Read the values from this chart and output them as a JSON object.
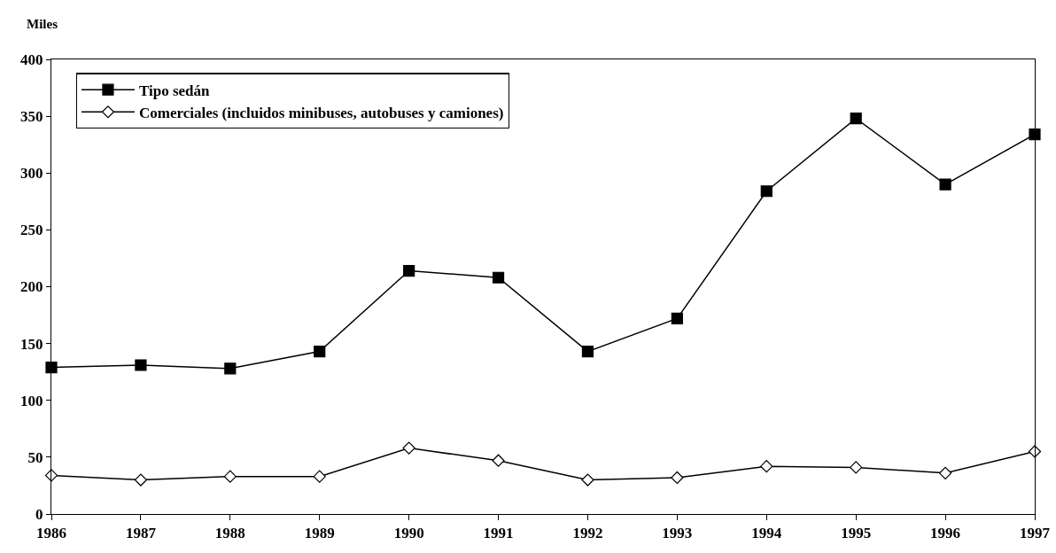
{
  "chart_data": {
    "type": "line",
    "ylabel": "Miles",
    "x": [
      1986,
      1987,
      1988,
      1989,
      1990,
      1991,
      1992,
      1993,
      1994,
      1995,
      1996,
      1997
    ],
    "series": [
      {
        "name": "Tipo sedán",
        "color": "#000000",
        "marker": "square",
        "values": [
          129,
          131,
          128,
          143,
          214,
          208,
          143,
          172,
          284,
          348,
          290,
          334
        ]
      },
      {
        "name": "Comerciales (incluidos minibuses, autobuses y camiones)",
        "color": "#000000",
        "marker": "diamond",
        "values": [
          34,
          30,
          33,
          33,
          58,
          47,
          30,
          32,
          42,
          41,
          36,
          55
        ]
      }
    ],
    "xlim": [
      1986,
      1997
    ],
    "xticks": [
      1986,
      1987,
      1988,
      1989,
      1990,
      1991,
      1992,
      1993,
      1994,
      1995,
      1996,
      1997
    ],
    "ylim": [
      0,
      400
    ],
    "yticks": [
      0,
      50,
      100,
      150,
      200,
      250,
      300,
      350,
      400
    ],
    "grid": false,
    "legend": "top left",
    "line_style": "solid"
  }
}
